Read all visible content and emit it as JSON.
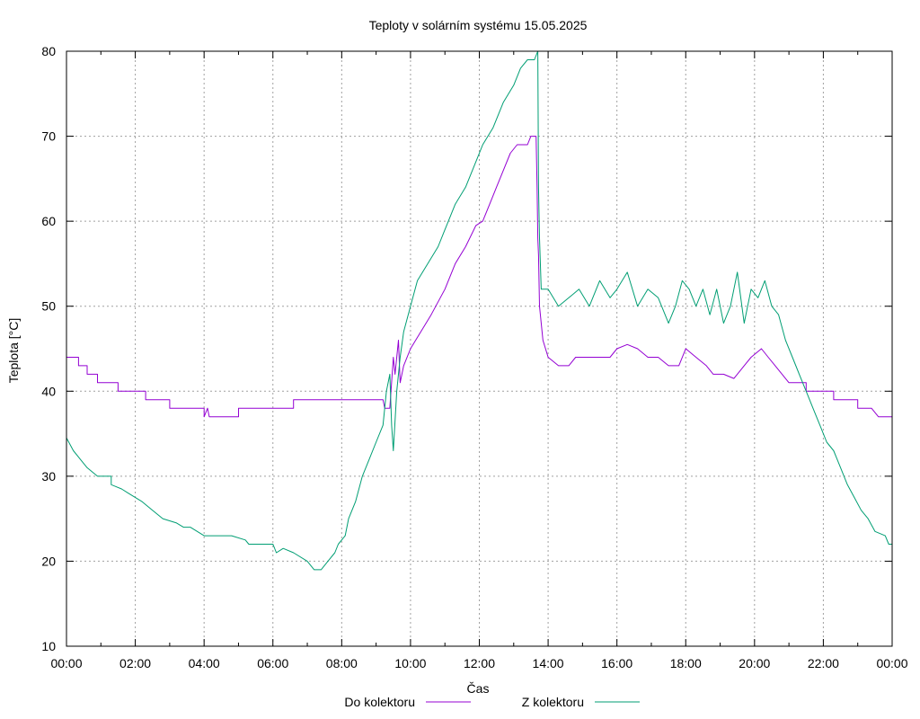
{
  "chart_data": {
    "type": "line",
    "title": "Teploty v solárním systému 15.05.2025",
    "xlabel": "Čas",
    "ylabel": "Teplota [°C]",
    "xlim": [
      0,
      24
    ],
    "ylim": [
      10,
      80
    ],
    "grid": true,
    "legend_position": "bottom-center",
    "x_tick_labels": [
      "00:00",
      "02:00",
      "04:00",
      "06:00",
      "08:00",
      "10:00",
      "12:00",
      "14:00",
      "16:00",
      "18:00",
      "20:00",
      "22:00",
      "00:00"
    ],
    "x_ticks": [
      0,
      2,
      4,
      6,
      8,
      10,
      12,
      14,
      16,
      18,
      20,
      22,
      24
    ],
    "y_ticks": [
      10,
      20,
      30,
      40,
      50,
      60,
      70,
      80
    ],
    "y_tick_labels": [
      "10",
      "20",
      "30",
      "40",
      "50",
      "60",
      "70",
      "80"
    ],
    "series": [
      {
        "name": "Do kolektoru",
        "color": "#9400d3",
        "points": [
          [
            0,
            44
          ],
          [
            0.35,
            44
          ],
          [
            0.35,
            43
          ],
          [
            0.6,
            43
          ],
          [
            0.6,
            42
          ],
          [
            0.9,
            42
          ],
          [
            0.9,
            41
          ],
          [
            1.5,
            41
          ],
          [
            1.5,
            40
          ],
          [
            2.3,
            40
          ],
          [
            2.3,
            39
          ],
          [
            3.0,
            39
          ],
          [
            3.0,
            38
          ],
          [
            4.0,
            38
          ],
          [
            4.0,
            37
          ],
          [
            4.1,
            38
          ],
          [
            4.15,
            37
          ],
          [
            5.0,
            37
          ],
          [
            5.0,
            38
          ],
          [
            6.6,
            38
          ],
          [
            6.6,
            39
          ],
          [
            9.2,
            39
          ],
          [
            9.25,
            38
          ],
          [
            9.4,
            38
          ],
          [
            9.5,
            44
          ],
          [
            9.55,
            42
          ],
          [
            9.65,
            46
          ],
          [
            9.7,
            41
          ],
          [
            9.8,
            43
          ],
          [
            10.0,
            45
          ],
          [
            10.3,
            47
          ],
          [
            10.6,
            49
          ],
          [
            11.0,
            52
          ],
          [
            11.3,
            55
          ],
          [
            11.6,
            57
          ],
          [
            11.9,
            59.5
          ],
          [
            12.1,
            60
          ],
          [
            12.3,
            62
          ],
          [
            12.5,
            64
          ],
          [
            12.7,
            66
          ],
          [
            12.9,
            68
          ],
          [
            13.1,
            69
          ],
          [
            13.4,
            69
          ],
          [
            13.5,
            70
          ],
          [
            13.65,
            70
          ],
          [
            13.68,
            64
          ],
          [
            13.7,
            58
          ],
          [
            13.72,
            56
          ],
          [
            13.75,
            50
          ],
          [
            13.85,
            46
          ],
          [
            14.0,
            44
          ],
          [
            14.3,
            43
          ],
          [
            14.6,
            43
          ],
          [
            14.8,
            44
          ],
          [
            15.2,
            44
          ],
          [
            15.5,
            44
          ],
          [
            15.8,
            44
          ],
          [
            16.0,
            45
          ],
          [
            16.3,
            45.5
          ],
          [
            16.6,
            45
          ],
          [
            16.9,
            44
          ],
          [
            17.2,
            44
          ],
          [
            17.5,
            43
          ],
          [
            17.8,
            43
          ],
          [
            18.0,
            45
          ],
          [
            18.3,
            44
          ],
          [
            18.6,
            43
          ],
          [
            18.8,
            42
          ],
          [
            19.1,
            42
          ],
          [
            19.4,
            41.5
          ],
          [
            19.7,
            43
          ],
          [
            19.9,
            44
          ],
          [
            20.2,
            45
          ],
          [
            20.4,
            44
          ],
          [
            20.6,
            43
          ],
          [
            20.8,
            42
          ],
          [
            21.0,
            41
          ],
          [
            21.5,
            41
          ],
          [
            21.5,
            40
          ],
          [
            22.3,
            40
          ],
          [
            22.3,
            39
          ],
          [
            23.0,
            39
          ],
          [
            23.0,
            38
          ],
          [
            23.4,
            38
          ],
          [
            23.6,
            37
          ],
          [
            24,
            37
          ]
        ]
      },
      {
        "name": "Z kolektoru",
        "color": "#009e73",
        "points": [
          [
            0,
            34.5
          ],
          [
            0.2,
            33
          ],
          [
            0.4,
            32
          ],
          [
            0.6,
            31
          ],
          [
            0.9,
            30
          ],
          [
            1.3,
            30
          ],
          [
            1.3,
            29
          ],
          [
            1.6,
            28.5
          ],
          [
            1.8,
            28
          ],
          [
            2.2,
            27
          ],
          [
            2.5,
            26
          ],
          [
            2.8,
            25
          ],
          [
            3.2,
            24.5
          ],
          [
            3.4,
            24
          ],
          [
            3.6,
            24
          ],
          [
            4.0,
            23
          ],
          [
            4.8,
            23
          ],
          [
            5.2,
            22.5
          ],
          [
            5.3,
            22
          ],
          [
            6.0,
            22
          ],
          [
            6.1,
            21
          ],
          [
            6.3,
            21.5
          ],
          [
            6.6,
            21
          ],
          [
            7.0,
            20
          ],
          [
            7.2,
            19
          ],
          [
            7.4,
            19
          ],
          [
            7.6,
            20
          ],
          [
            7.8,
            21
          ],
          [
            7.9,
            22
          ],
          [
            8.1,
            23
          ],
          [
            8.2,
            25
          ],
          [
            8.4,
            27
          ],
          [
            8.6,
            30
          ],
          [
            8.8,
            32
          ],
          [
            9.0,
            34
          ],
          [
            9.2,
            36
          ],
          [
            9.3,
            40
          ],
          [
            9.4,
            42
          ],
          [
            9.45,
            36
          ],
          [
            9.5,
            33
          ],
          [
            9.6,
            40
          ],
          [
            9.7,
            44
          ],
          [
            9.8,
            47
          ],
          [
            10.0,
            50
          ],
          [
            10.2,
            53
          ],
          [
            10.5,
            55
          ],
          [
            10.8,
            57
          ],
          [
            11.0,
            59
          ],
          [
            11.3,
            62
          ],
          [
            11.6,
            64
          ],
          [
            11.9,
            67
          ],
          [
            12.1,
            69
          ],
          [
            12.4,
            71
          ],
          [
            12.7,
            74
          ],
          [
            13.0,
            76
          ],
          [
            13.2,
            78
          ],
          [
            13.4,
            79
          ],
          [
            13.6,
            79
          ],
          [
            13.7,
            80
          ],
          [
            13.72,
            64
          ],
          [
            13.75,
            58
          ],
          [
            13.8,
            52
          ],
          [
            14.0,
            52
          ],
          [
            14.3,
            50
          ],
          [
            14.6,
            51
          ],
          [
            14.9,
            52
          ],
          [
            15.2,
            50
          ],
          [
            15.5,
            53
          ],
          [
            15.8,
            51
          ],
          [
            16.0,
            52
          ],
          [
            16.3,
            54
          ],
          [
            16.6,
            50
          ],
          [
            16.9,
            52
          ],
          [
            17.2,
            51
          ],
          [
            17.5,
            48
          ],
          [
            17.7,
            50
          ],
          [
            17.9,
            53
          ],
          [
            18.1,
            52
          ],
          [
            18.3,
            50
          ],
          [
            18.5,
            52
          ],
          [
            18.7,
            49
          ],
          [
            18.9,
            52
          ],
          [
            19.1,
            48
          ],
          [
            19.3,
            50
          ],
          [
            19.5,
            54
          ],
          [
            19.7,
            48
          ],
          [
            19.9,
            52
          ],
          [
            20.1,
            51
          ],
          [
            20.3,
            53
          ],
          [
            20.5,
            50
          ],
          [
            20.7,
            49
          ],
          [
            20.9,
            46
          ],
          [
            21.1,
            44
          ],
          [
            21.3,
            42
          ],
          [
            21.5,
            40
          ],
          [
            21.7,
            38
          ],
          [
            21.9,
            36
          ],
          [
            22.1,
            34
          ],
          [
            22.3,
            33
          ],
          [
            22.5,
            31
          ],
          [
            22.7,
            29
          ],
          [
            22.9,
            27.5
          ],
          [
            23.1,
            26
          ],
          [
            23.3,
            25
          ],
          [
            23.5,
            23.5
          ],
          [
            23.8,
            23
          ],
          [
            23.9,
            22
          ],
          [
            24,
            22
          ]
        ]
      }
    ]
  }
}
